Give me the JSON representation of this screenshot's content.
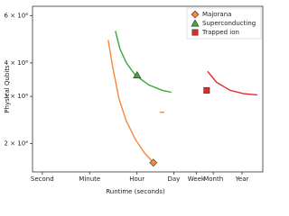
{
  "chart_data": {
    "type": "line",
    "x_label": "Runtime (seconds)",
    "y_label": "Physical Qubits",
    "x_log": true,
    "y_log": true,
    "xlim": [
      0.43,
      190000000
    ],
    "ylim": [
      1570000,
      6500000
    ],
    "xticks": [
      {
        "value": 1,
        "label": "Second"
      },
      {
        "value": 60,
        "label": "Minute"
      },
      {
        "value": 3600,
        "label": "Hour"
      },
      {
        "value": 86400,
        "label": "Day"
      },
      {
        "value": 604800,
        "label": "Week"
      },
      {
        "value": 2629800,
        "label": "Month"
      },
      {
        "value": 31557600,
        "label": "Year"
      }
    ],
    "yticks": [
      {
        "value": 2000000,
        "label": "2 × 10⁶"
      },
      {
        "value": 3000000,
        "label": "3 × 10⁶"
      },
      {
        "value": 4000000,
        "label": "4 × 10⁶"
      },
      {
        "value": 6000000,
        "label": "6 × 10⁶"
      }
    ],
    "legend": "upper right",
    "series": [
      {
        "name": "Majorana",
        "color": "#f5883a",
        "marker": "diamond",
        "x": [
          298,
          441,
          760,
          1420,
          3090,
          6770,
          12600,
          null,
          25700,
          38000
        ],
        "values": [
          4870000,
          3860000,
          2940000,
          2430000,
          2080000,
          1850000,
          1730000,
          null,
          2620000,
          2620000
        ],
        "point": {
          "x": 14800,
          "value": 1700000
        }
      },
      {
        "name": "Superconducting",
        "color": "#3aa83a",
        "marker": "triangle",
        "x": [
          557,
          822,
          1420,
          3090,
          10000,
          32200,
          70500
        ],
        "values": [
          5260000,
          4510000,
          4010000,
          3600000,
          3310000,
          3160000,
          3110000
        ],
        "point": {
          "x": 3630,
          "value": 3600000
        }
      },
      {
        "name": "Trapped ion",
        "color": "#e8262a",
        "marker": "square",
        "x": [
          1600000,
          3470000,
          11300000,
          36000000,
          117000000
        ],
        "values": [
          3720000,
          3390000,
          3160000,
          3070000,
          3040000
        ],
        "point": {
          "x": 1480000,
          "value": 3160000
        }
      }
    ]
  }
}
